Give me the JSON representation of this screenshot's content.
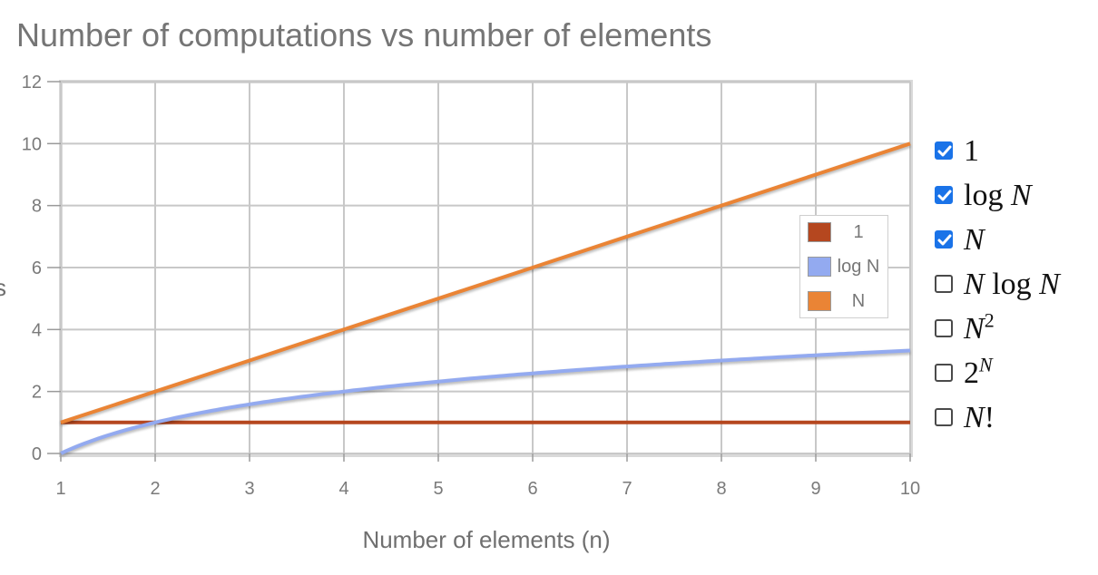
{
  "title": "Number of computations vs number of elements",
  "chart_data": {
    "type": "line",
    "title": "Number of computations vs number of elements",
    "xlabel": "Number of elements (n)",
    "ylabel": "",
    "x": [
      1,
      2,
      3,
      4,
      5,
      6,
      7,
      8,
      9,
      10
    ],
    "xlim": [
      1,
      10
    ],
    "ylim": [
      0,
      12
    ],
    "x_ticks": [
      "1",
      "2",
      "3",
      "4",
      "5",
      "6",
      "7",
      "8",
      "9",
      "10"
    ],
    "y_ticks": [
      "0",
      "2",
      "4",
      "6",
      "8",
      "10",
      "12"
    ],
    "grid": true,
    "legend_position": "right",
    "series": [
      {
        "name": "1",
        "color": "#b5471f",
        "values": [
          1,
          1,
          1,
          1,
          1,
          1,
          1,
          1,
          1,
          1
        ]
      },
      {
        "name": "log N",
        "color": "#93aaf0",
        "values": [
          0,
          1,
          1.58,
          2,
          2.32,
          2.58,
          2.81,
          3,
          3.17,
          3.32
        ]
      },
      {
        "name": "N",
        "color": "#ea8435",
        "values": [
          1,
          2,
          3,
          4,
          5,
          6,
          7,
          8,
          9,
          10
        ]
      }
    ]
  },
  "selector": {
    "items": [
      {
        "label": "1",
        "checked": true
      },
      {
        "label": "log N",
        "checked": true
      },
      {
        "label": "N",
        "checked": true
      },
      {
        "label": "N log N",
        "checked": false
      },
      {
        "label": "N2",
        "checked": false
      },
      {
        "label": "2N",
        "checked": false
      },
      {
        "label": "N!",
        "checked": false
      }
    ]
  },
  "cropped_ylabel_fragment": "s"
}
